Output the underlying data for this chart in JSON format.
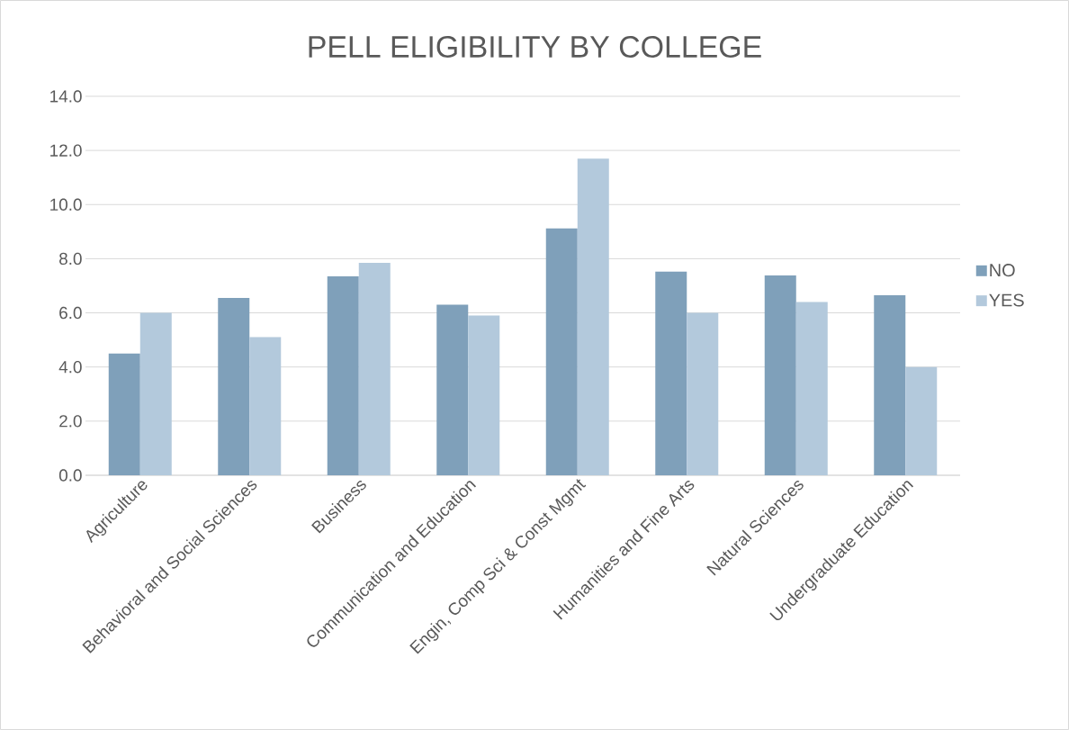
{
  "chart_data": {
    "type": "bar",
    "title": "PELL ELIGIBILITY BY COLLEGE",
    "categories": [
      "Agriculture",
      "Behavioral and Social Sciences",
      "Business",
      "Communication and Education",
      "Engin, Comp Sci & Const Mgmt",
      "Humanities and Fine Arts",
      "Natural Sciences",
      "Undergraduate Education"
    ],
    "series": [
      {
        "name": "NO",
        "color": "#7fa0ba",
        "values": [
          4.5,
          6.55,
          7.35,
          6.3,
          9.12,
          7.52,
          7.38,
          6.65
        ]
      },
      {
        "name": "YES",
        "color": "#b3c9dc",
        "values": [
          6.0,
          5.1,
          7.85,
          5.9,
          11.7,
          6.0,
          6.4,
          4.0
        ]
      }
    ],
    "ylim": [
      0,
      14
    ],
    "yticks": [
      {
        "value": 0,
        "label": "0.0"
      },
      {
        "value": 2,
        "label": "2.0"
      },
      {
        "value": 4,
        "label": "4.0"
      },
      {
        "value": 6,
        "label": "6.0"
      },
      {
        "value": 8,
        "label": "8.0"
      },
      {
        "value": 10,
        "label": "10.0"
      },
      {
        "value": 12,
        "label": "12.0"
      },
      {
        "value": 14,
        "label": "14.0"
      }
    ],
    "grid": "y",
    "legend": "right"
  }
}
